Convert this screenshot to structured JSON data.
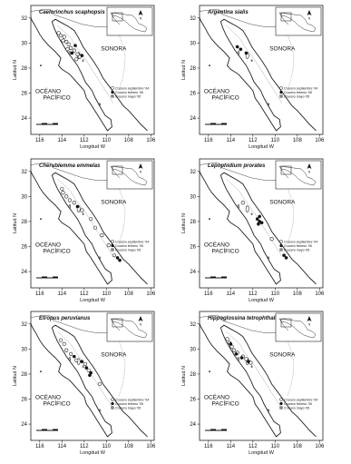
{
  "figure": {
    "axis": {
      "x_label": "Longitud W",
      "y_label": "Latitud N",
      "x_ticks": [
        "116",
        "114",
        "112",
        "110",
        "108",
        "106"
      ],
      "y_ticks": [
        "32",
        "30",
        "28",
        "26",
        "24"
      ]
    },
    "labels": {
      "sonora": "SONORA",
      "ocean_line1": "OCÉANO",
      "ocean_line2": "PACÍFICO",
      "north": "N"
    },
    "panels": [
      {
        "species": "Caelorinchus scaphopsis",
        "legend": [
          "Crucero septiembre '04",
          "Crucero febrero '05",
          "Crucero mayo '05"
        ],
        "points": [
          {
            "lon": -114.3,
            "lat": 30.8,
            "cruise": 0
          },
          {
            "lon": -114.1,
            "lat": 30.6,
            "cruise": 0
          },
          {
            "lon": -113.8,
            "lat": 30.5,
            "cruise": 0
          },
          {
            "lon": -113.9,
            "lat": 30.2,
            "cruise": 0
          },
          {
            "lon": -113.6,
            "lat": 30.1,
            "cruise": 0
          },
          {
            "lon": -113.4,
            "lat": 29.9,
            "cruise": 0
          },
          {
            "lon": -113.2,
            "lat": 29.6,
            "cruise": 0
          },
          {
            "lon": -113.5,
            "lat": 29.5,
            "cruise": 0
          },
          {
            "lon": -112.9,
            "lat": 29.4,
            "cruise": 0
          },
          {
            "lon": -112.6,
            "lat": 29.1,
            "cruise": 0
          },
          {
            "lon": -112.4,
            "lat": 28.9,
            "cruise": 0
          },
          {
            "lon": -112.7,
            "lat": 28.7,
            "cruise": 0
          },
          {
            "lon": -113.1,
            "lat": 29.2,
            "cruise": 1
          },
          {
            "lon": -112.8,
            "lat": 29.8,
            "cruise": 1
          },
          {
            "lon": -112.2,
            "lat": 29.0,
            "cruise": 1
          }
        ]
      },
      {
        "species": "Argentina sialis",
        "legend": [
          "Crucero septiembre '04",
          "Crucero febrero '05",
          "Crucero mayo '05"
        ],
        "points": [
          {
            "lon": -113.4,
            "lat": 29.7,
            "cruise": 1
          },
          {
            "lon": -113.1,
            "lat": 29.5,
            "cruise": 1
          },
          {
            "lon": -112.6,
            "lat": 29.2,
            "cruise": 1
          }
        ]
      },
      {
        "species": "Cherublemma emmelas",
        "legend": [
          "Crucero septiembre '04",
          "Crucero febrero '05",
          "Crucero mayo '05"
        ],
        "points": [
          {
            "lon": -114.0,
            "lat": 30.6,
            "cruise": 0
          },
          {
            "lon": -113.9,
            "lat": 30.3,
            "cruise": 0
          },
          {
            "lon": -113.6,
            "lat": 30.0,
            "cruise": 0
          },
          {
            "lon": -113.3,
            "lat": 29.7,
            "cruise": 0
          },
          {
            "lon": -112.9,
            "lat": 29.5,
            "cruise": 0
          },
          {
            "lon": -112.2,
            "lat": 28.9,
            "cruise": 0
          },
          {
            "lon": -111.4,
            "lat": 28.2,
            "cruise": 0
          },
          {
            "lon": -111.0,
            "lat": 27.5,
            "cruise": 0
          },
          {
            "lon": -110.4,
            "lat": 26.9,
            "cruise": 0
          },
          {
            "lon": -109.8,
            "lat": 26.1,
            "cruise": 0
          },
          {
            "lon": -109.3,
            "lat": 25.3,
            "cruise": 0
          },
          {
            "lon": -112.6,
            "lat": 29.2,
            "cruise": 1
          },
          {
            "lon": -109.0,
            "lat": 25.1,
            "cruise": 1
          },
          {
            "lon": -108.8,
            "lat": 24.9,
            "cruise": 1
          }
        ]
      },
      {
        "species": "Lepophidium prorates",
        "legend": [
          "Crucero septiembre '04",
          "Crucero febrero '05",
          "Crucero mayo '05"
        ],
        "points": [
          {
            "lon": -111.6,
            "lat": 28.2,
            "cruise": 1
          },
          {
            "lon": -111.4,
            "lat": 28.0,
            "cruise": 1
          },
          {
            "lon": -111.5,
            "lat": 27.8,
            "cruise": 1
          },
          {
            "lon": -111.2,
            "lat": 27.9,
            "cruise": 1
          },
          {
            "lon": -111.4,
            "lat": 28.4,
            "cruise": 1
          },
          {
            "lon": -109.2,
            "lat": 25.3,
            "cruise": 1
          },
          {
            "lon": -109.0,
            "lat": 25.1,
            "cruise": 1
          },
          {
            "lon": -112.9,
            "lat": 29.5,
            "cruise": 0
          },
          {
            "lon": -110.3,
            "lat": 26.6,
            "cruise": 0
          }
        ]
      },
      {
        "species": "Etropus peruvianus",
        "legend": [
          "Crucero septiembre '04",
          "Crucero febrero '05",
          "Crucero mayo '05"
        ],
        "points": [
          {
            "lon": -114.1,
            "lat": 30.7,
            "cruise": 0
          },
          {
            "lon": -113.8,
            "lat": 30.4,
            "cruise": 0
          },
          {
            "lon": -113.6,
            "lat": 29.9,
            "cruise": 0
          },
          {
            "lon": -113.2,
            "lat": 29.6,
            "cruise": 0
          },
          {
            "lon": -112.7,
            "lat": 29.1,
            "cruise": 0
          },
          {
            "lon": -111.9,
            "lat": 28.8,
            "cruise": 0
          },
          {
            "lon": -111.6,
            "lat": 28.3,
            "cruise": 0
          },
          {
            "lon": -110.6,
            "lat": 27.2,
            "cruise": 0
          },
          {
            "lon": -112.9,
            "lat": 29.4,
            "cruise": 1
          },
          {
            "lon": -112.2,
            "lat": 29.0,
            "cruise": 1
          },
          {
            "lon": -111.8,
            "lat": 28.5,
            "cruise": 1
          },
          {
            "lon": -111.4,
            "lat": 28.1,
            "cruise": 1
          },
          {
            "lon": -111.5,
            "lat": 27.9,
            "cruise": 1
          }
        ]
      },
      {
        "species": "Hippoglossina tetrophthalma",
        "legend": [
          "Crucero septiembre '04",
          "Crucero febrero '05",
          "Crucero mayo '05"
        ],
        "points": [
          {
            "lon": -114.3,
            "lat": 30.8,
            "cruise": 0
          },
          {
            "lon": -114.1,
            "lat": 30.5,
            "cruise": 0
          },
          {
            "lon": -113.9,
            "lat": 30.2,
            "cruise": 0
          },
          {
            "lon": -113.7,
            "lat": 29.9,
            "cruise": 0
          },
          {
            "lon": -113.4,
            "lat": 29.7,
            "cruise": 0
          },
          {
            "lon": -112.9,
            "lat": 29.4,
            "cruise": 0
          },
          {
            "lon": -112.6,
            "lat": 29.2,
            "cruise": 0
          },
          {
            "lon": -112.2,
            "lat": 28.9,
            "cruise": 0
          },
          {
            "lon": -114.0,
            "lat": 30.4,
            "cruise": 1
          },
          {
            "lon": -113.5,
            "lat": 29.6,
            "cruise": 1
          },
          {
            "lon": -113.0,
            "lat": 29.3,
            "cruise": 1
          },
          {
            "lon": -112.4,
            "lat": 29.0,
            "cruise": 1
          }
        ]
      }
    ]
  }
}
